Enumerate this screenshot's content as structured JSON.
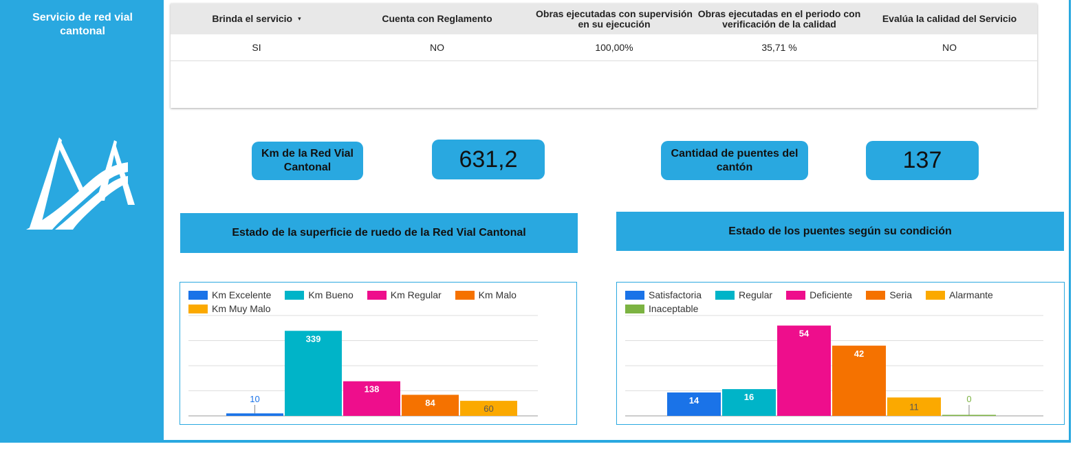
{
  "sidebar": {
    "title": "Servicio de red vial cantonal"
  },
  "table": {
    "headers": [
      "Brinda el servicio",
      "Cuenta con Reglamento",
      "Obras ejecutadas con supervisión en su ejecución",
      "Obras ejecutadas en el periodo con verificación de la calidad",
      "Evalúa la calidad del Servicio"
    ],
    "sort_icon": "▾",
    "row": [
      "SI",
      "NO",
      "100,00%",
      "35,71 %",
      "NO"
    ]
  },
  "kpis": {
    "km_label": "Km de la Red Vial Cantonal",
    "km_value": "631,2",
    "bridges_label": "Cantidad de puentes del cantón",
    "bridges_value": "137"
  },
  "headers": {
    "road_chart": "Estado de la superficie de ruedo de la Red Vial Cantonal",
    "bridge_chart": "Estado de los  puentes según su condición"
  },
  "colors": {
    "accent": "#29a8e0"
  },
  "chart_data": [
    {
      "type": "bar",
      "series": [
        {
          "name": "Km Excelente",
          "values": [
            10
          ],
          "color": "#1a73e8"
        },
        {
          "name": "Km Bueno",
          "values": [
            339
          ],
          "color": "#00b4c8"
        },
        {
          "name": "Km Regular",
          "values": [
            138
          ],
          "color": "#ee0e8c"
        },
        {
          "name": "Km Malo",
          "values": [
            84
          ],
          "color": "#f57200"
        },
        {
          "name": "Km Muy Malo",
          "values": [
            60
          ],
          "color": "#fba900"
        }
      ],
      "ylim": [
        0,
        400
      ],
      "grid": true,
      "legend_position": "top-left"
    },
    {
      "type": "bar",
      "series": [
        {
          "name": "Satisfactoria",
          "values": [
            14
          ],
          "color": "#1a73e8"
        },
        {
          "name": "Regular",
          "values": [
            16
          ],
          "color": "#00b4c8"
        },
        {
          "name": "Deficiente",
          "values": [
            54
          ],
          "color": "#ee0e8c"
        },
        {
          "name": "Seria",
          "values": [
            42
          ],
          "color": "#f57200"
        },
        {
          "name": "Alarmante",
          "values": [
            11
          ],
          "color": "#fba900"
        },
        {
          "name": "Inaceptable",
          "values": [
            0
          ],
          "color": "#7cb342"
        }
      ],
      "ylim": [
        0,
        60
      ],
      "grid": true,
      "legend_position": "top-left"
    }
  ]
}
